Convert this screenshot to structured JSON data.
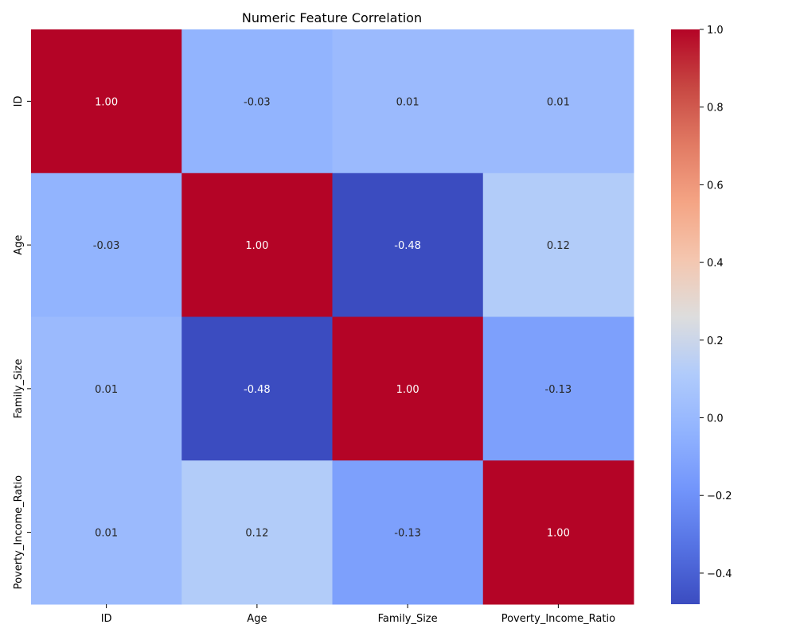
{
  "chart_data": {
    "type": "heatmap",
    "title": "Numeric Feature Correlation",
    "xlabel": "",
    "ylabel": "",
    "x_categories": [
      "ID",
      "Age",
      "Family_Size",
      "Poverty_Income_Ratio"
    ],
    "y_categories": [
      "ID",
      "Age",
      "Family_Size",
      "Poverty_Income_Ratio"
    ],
    "values": [
      [
        1.0,
        -0.03,
        0.01,
        0.01
      ],
      [
        -0.03,
        1.0,
        -0.48,
        0.12
      ],
      [
        0.01,
        -0.48,
        1.0,
        -0.13
      ],
      [
        0.01,
        0.12,
        -0.13,
        1.0
      ]
    ],
    "cell_labels": [
      [
        "1.00",
        "-0.03",
        "0.01",
        "0.01"
      ],
      [
        "-0.03",
        "1.00",
        "-0.48",
        "0.12"
      ],
      [
        "0.01",
        "-0.48",
        "1.00",
        "-0.13"
      ],
      [
        "0.01",
        "0.12",
        "-0.13",
        "1.00"
      ]
    ],
    "colormap": "coolwarm",
    "colorbar": {
      "range": [
        -0.48,
        1.0
      ],
      "ticks": [
        -0.4,
        -0.2,
        0.0,
        0.2,
        0.4,
        0.6,
        0.8,
        1.0
      ],
      "tick_labels": [
        "−0.4",
        "−0.2",
        "0.0",
        "0.2",
        "0.4",
        "0.6",
        "0.8",
        "1.0"
      ]
    },
    "grid": false,
    "legend": "colorbar-right"
  }
}
